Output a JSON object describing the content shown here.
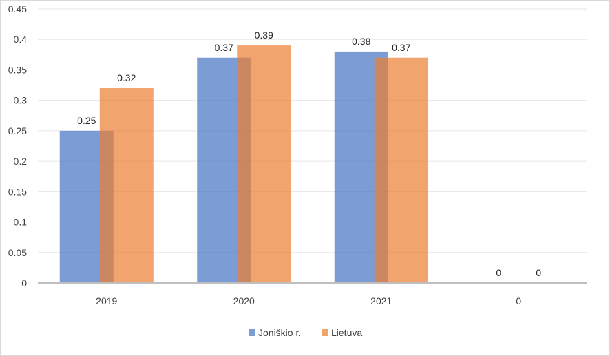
{
  "chart_data": {
    "type": "bar",
    "categories": [
      "2019",
      "2020",
      "2021",
      "0"
    ],
    "series": [
      {
        "name": "Joniškio r.",
        "values": [
          0.25,
          0.37,
          0.38,
          0
        ],
        "color": "#4472c4"
      },
      {
        "name": "Lietuva",
        "values": [
          0.32,
          0.39,
          0.37,
          0
        ],
        "color": "#ed7d31"
      }
    ],
    "data_labels": [
      [
        "0.25",
        "0.37",
        "0.38",
        "0"
      ],
      [
        "0.32",
        "0.39",
        "0.37",
        "0"
      ]
    ],
    "ylim": [
      0,
      0.45
    ],
    "yticks": [
      "0",
      "0.05",
      "0.1",
      "0.15",
      "0.2",
      "0.25",
      "0.3",
      "0.35",
      "0.4",
      "0.45"
    ],
    "grid": true,
    "legend_position": "bottom",
    "bar_opacity": 0.7
  }
}
